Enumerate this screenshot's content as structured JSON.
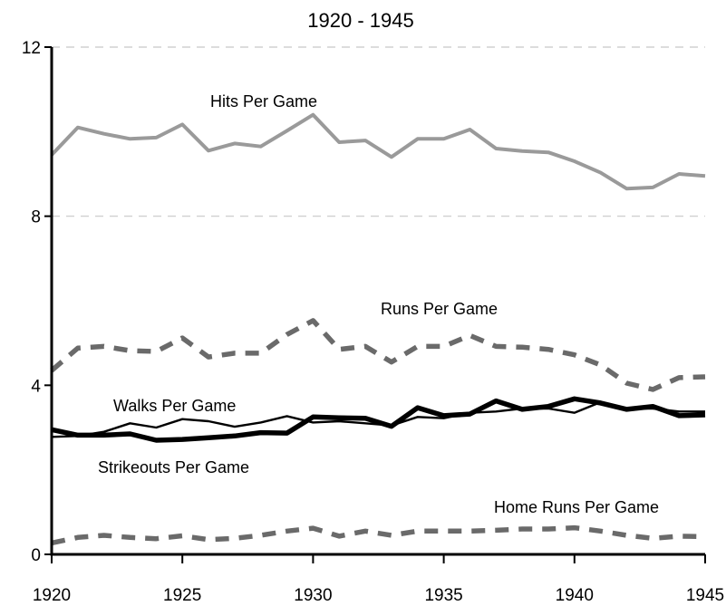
{
  "chart_data": {
    "type": "line",
    "title": "1920 - 1945",
    "xlabel": "",
    "ylabel": "",
    "xlim": [
      1920,
      1945
    ],
    "ylim": [
      0,
      12
    ],
    "x_ticks": [
      1920,
      1925,
      1930,
      1935,
      1940,
      1945
    ],
    "y_ticks": [
      0,
      4,
      8,
      12
    ],
    "grid": "horizontal dashed at 8 and 12",
    "x": [
      1920,
      1921,
      1922,
      1923,
      1924,
      1925,
      1926,
      1927,
      1928,
      1929,
      1930,
      1931,
      1932,
      1933,
      1934,
      1935,
      1936,
      1937,
      1938,
      1939,
      1940,
      1941,
      1942,
      1943,
      1944,
      1945
    ],
    "series": [
      {
        "name": "Hits Per Game",
        "color": "#9a9a9a",
        "style": "solid",
        "values": [
          9.45,
          10.1,
          9.95,
          9.83,
          9.86,
          10.17,
          9.55,
          9.72,
          9.65,
          10.02,
          10.4,
          9.75,
          9.79,
          9.4,
          9.83,
          9.83,
          10.05,
          9.6,
          9.54,
          9.51,
          9.3,
          9.03,
          8.65,
          8.68,
          9.0,
          8.95
        ]
      },
      {
        "name": "Runs Per Game",
        "color": "#6a6a6a",
        "style": "dashed",
        "values": [
          4.35,
          4.88,
          4.92,
          4.82,
          4.8,
          5.12,
          4.67,
          4.76,
          4.76,
          5.2,
          5.53,
          4.85,
          4.92,
          4.55,
          4.92,
          4.92,
          5.18,
          4.92,
          4.9,
          4.85,
          4.72,
          4.48,
          4.05,
          3.9,
          4.18,
          4.2
        ]
      },
      {
        "name": "Walks Per Game",
        "color": "#000000",
        "style": "solid-thin",
        "values": [
          2.78,
          2.8,
          2.9,
          3.1,
          3.0,
          3.2,
          3.15,
          3.02,
          3.12,
          3.27,
          3.12,
          3.15,
          3.1,
          3.05,
          3.25,
          3.22,
          3.35,
          3.38,
          3.45,
          3.45,
          3.35,
          3.6,
          3.45,
          3.45,
          3.38,
          3.38
        ]
      },
      {
        "name": "Strikeouts Per Game",
        "color": "#000000",
        "style": "solid-thick",
        "values": [
          2.95,
          2.82,
          2.82,
          2.85,
          2.7,
          2.72,
          2.76,
          2.8,
          2.88,
          2.87,
          3.25,
          3.23,
          3.22,
          3.03,
          3.47,
          3.28,
          3.32,
          3.63,
          3.43,
          3.5,
          3.68,
          3.58,
          3.43,
          3.5,
          3.28,
          3.3
        ]
      },
      {
        "name": "Home Runs Per Game",
        "color": "#6a6a6a",
        "style": "dashed",
        "values": [
          0.27,
          0.4,
          0.45,
          0.4,
          0.37,
          0.44,
          0.35,
          0.38,
          0.45,
          0.55,
          0.62,
          0.43,
          0.55,
          0.45,
          0.55,
          0.55,
          0.55,
          0.57,
          0.6,
          0.6,
          0.63,
          0.55,
          0.45,
          0.38,
          0.43,
          0.42
        ]
      }
    ]
  }
}
